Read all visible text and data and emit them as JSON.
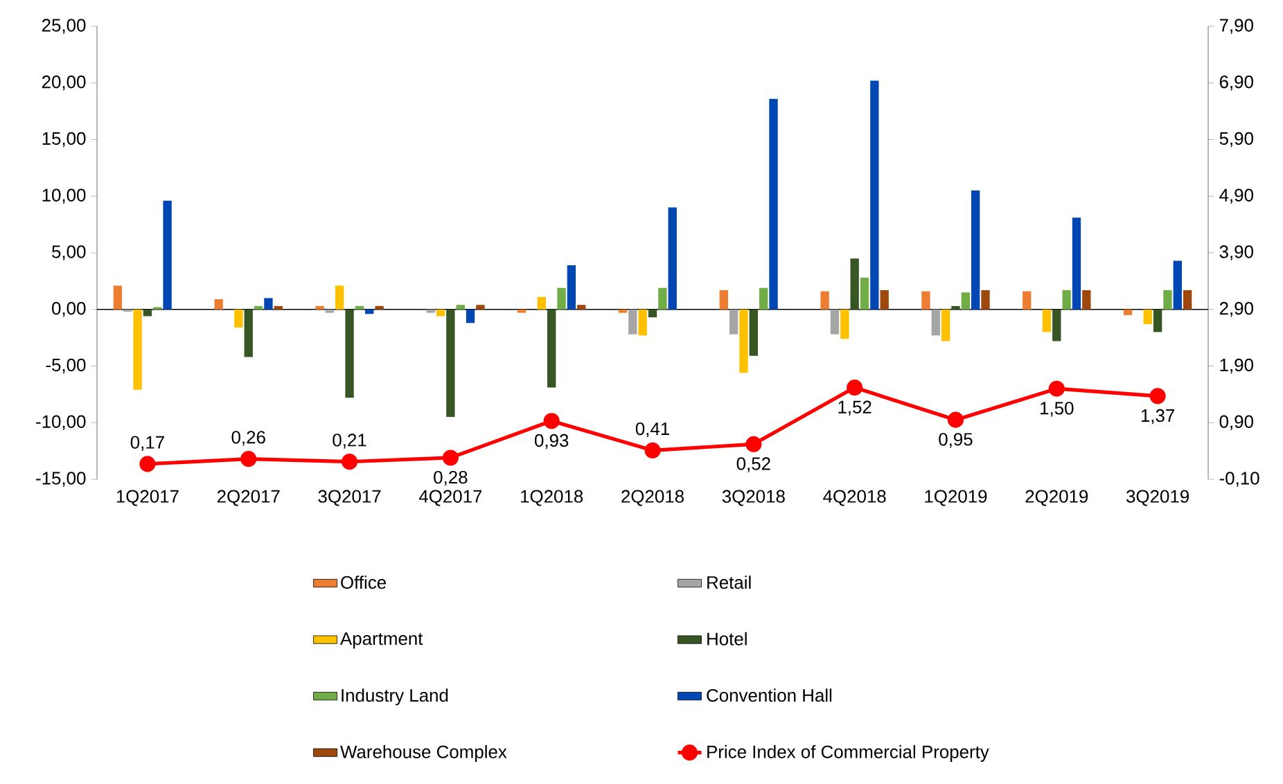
{
  "chart_data": {
    "type": "bar",
    "categories": [
      "1Q2017",
      "2Q2017",
      "3Q2017",
      "4Q2017",
      "1Q2018",
      "2Q2018",
      "3Q2018",
      "4Q2018",
      "1Q2019",
      "2Q2019",
      "3Q2019"
    ],
    "series": [
      {
        "name": "Office",
        "color": "#ed7d31",
        "values": [
          2.1,
          0.9,
          0.3,
          0,
          -0.3,
          -0.3,
          1.7,
          1.6,
          1.6,
          1.6,
          -0.5
        ]
      },
      {
        "name": "Retail",
        "color": "#a5a5a5",
        "values": [
          -0.2,
          0,
          -0.3,
          -0.3,
          0,
          -2.2,
          -2.2,
          -2.2,
          -2.3,
          0,
          0
        ]
      },
      {
        "name": "Apartment",
        "color": "#ffc000",
        "values": [
          -7.1,
          -1.6,
          2.1,
          -0.6,
          1.1,
          -2.3,
          -5.6,
          -2.6,
          -2.8,
          -2.0,
          -1.3
        ]
      },
      {
        "name": "Hotel",
        "color": "#375623",
        "values": [
          -0.6,
          -4.2,
          -7.8,
          -9.5,
          -6.9,
          -0.7,
          -4.1,
          4.5,
          0.3,
          -2.8,
          -2.0
        ]
      },
      {
        "name": "Industry Land",
        "color": "#70ad47",
        "values": [
          0.2,
          0.3,
          0.3,
          0.4,
          1.9,
          1.9,
          1.9,
          2.8,
          1.5,
          1.7,
          1.7
        ]
      },
      {
        "name": "Convention Hall",
        "color": "#0047b3",
        "values": [
          9.6,
          1.0,
          -0.4,
          -1.2,
          3.9,
          9.0,
          18.6,
          20.2,
          10.5,
          8.1,
          4.3
        ]
      },
      {
        "name": "Warehouse Complex",
        "color": "#9e480e",
        "values": [
          0,
          0.3,
          0.3,
          0.4,
          0.4,
          0,
          0,
          1.7,
          1.7,
          1.7,
          1.7
        ]
      },
      {
        "name": "Price Index of Commercial Property",
        "type": "line",
        "axis": "y2",
        "color": "#ff0000",
        "marker": "circle",
        "line_style": "solid",
        "values": [
          0.17,
          0.26,
          0.21,
          0.28,
          0.93,
          0.41,
          0.52,
          1.52,
          0.95,
          1.5,
          1.37
        ],
        "value_labels": [
          "0,17",
          "0,26",
          "0,21",
          "0,28",
          "0,93",
          "0,41",
          "0,52",
          "1,52",
          "0,95",
          "1,50",
          "1,37"
        ]
      }
    ],
    "ylim": [
      -15,
      25
    ],
    "yticks": [
      {
        "value": -15,
        "label": "-15,00"
      },
      {
        "value": -10,
        "label": "-10,00"
      },
      {
        "value": -5,
        "label": "-5,00"
      },
      {
        "value": 0,
        "label": "0,00"
      },
      {
        "value": 5,
        "label": "5,00"
      },
      {
        "value": 10,
        "label": "10,00"
      },
      {
        "value": 15,
        "label": "15,00"
      },
      {
        "value": 20,
        "label": "20,00"
      },
      {
        "value": 25,
        "label": "25,00"
      }
    ],
    "y2lim": [
      -0.1,
      7.9
    ],
    "y2ticks": [
      {
        "value": -0.1,
        "label": "-0,10"
      },
      {
        "value": 0.9,
        "label": "0,90"
      },
      {
        "value": 1.9,
        "label": "1,90"
      },
      {
        "value": 2.9,
        "label": "2,90"
      },
      {
        "value": 3.9,
        "label": "3,90"
      },
      {
        "value": 4.9,
        "label": "4,90"
      },
      {
        "value": 5.9,
        "label": "5,90"
      },
      {
        "value": 6.9,
        "label": "6,90"
      },
      {
        "value": 7.9,
        "label": "7,90"
      }
    ],
    "legend": "bottom"
  }
}
